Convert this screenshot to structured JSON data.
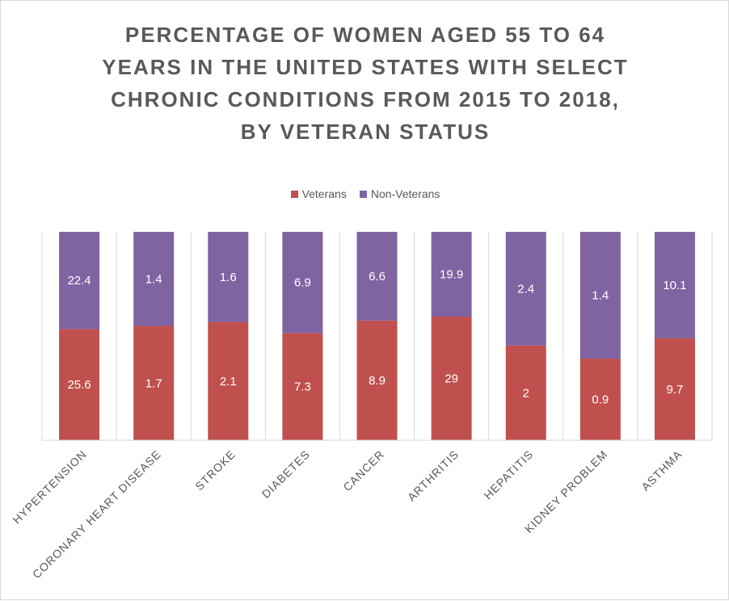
{
  "chart_data": {
    "type": "bar",
    "stacked": true,
    "normalized": true,
    "title_lines": [
      "PERCENTAGE OF WOMEN AGED 55 TO 64",
      "YEARS IN THE UNITED STATES WITH SELECT",
      "CHRONIC CONDITIONS FROM 2015 TO 2018,",
      "BY VETERAN STATUS"
    ],
    "categories": [
      "HYPERTENSION",
      "CORONARY HEART DISEASE",
      "STROKE",
      "DIABETES",
      "CANCER",
      "ARTHRITIS",
      "HEPATITIS",
      "KIDNEY PROBLEM",
      "ASTHMA"
    ],
    "series": [
      {
        "name": "Veterans",
        "color": "#c0504d",
        "values": [
          25.6,
          1.7,
          2.1,
          7.3,
          8.9,
          29,
          2,
          0.9,
          9.7
        ]
      },
      {
        "name": "Non-Veterans",
        "color": "#8064a2",
        "values": [
          22.4,
          1.4,
          1.6,
          6.9,
          6.6,
          19.9,
          2.4,
          1.4,
          10.1
        ]
      }
    ],
    "legend_position": "top",
    "grid": true,
    "gridline_color": "#d9d9d9"
  }
}
